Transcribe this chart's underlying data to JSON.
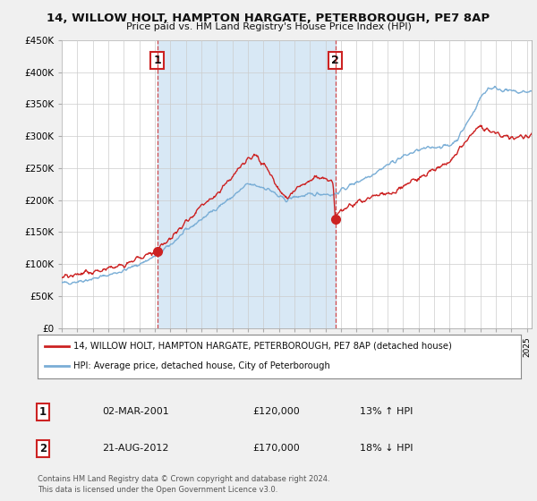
{
  "title": "14, WILLOW HOLT, HAMPTON HARGATE, PETERBOROUGH, PE7 8AP",
  "subtitle": "Price paid vs. HM Land Registry's House Price Index (HPI)",
  "legend_line1": "14, WILLOW HOLT, HAMPTON HARGATE, PETERBOROUGH, PE7 8AP (detached house)",
  "legend_line2": "HPI: Average price, detached house, City of Peterborough",
  "sale1_date": "02-MAR-2001",
  "sale1_price": "£120,000",
  "sale1_hpi": "13% ↑ HPI",
  "sale2_date": "21-AUG-2012",
  "sale2_price": "£170,000",
  "sale2_hpi": "18% ↓ HPI",
  "footer1": "Contains HM Land Registry data © Crown copyright and database right 2024.",
  "footer2": "This data is licensed under the Open Government Licence v3.0.",
  "ylim": [
    0,
    450000
  ],
  "yticks": [
    0,
    50000,
    100000,
    150000,
    200000,
    250000,
    300000,
    350000,
    400000,
    450000
  ],
  "xlim_start": 1995.0,
  "xlim_end": 2025.3,
  "red_color": "#cc2222",
  "blue_color": "#7aaed6",
  "shade_color": "#d8e8f5",
  "bg_color": "#f0f0f0",
  "plot_bg": "#ffffff",
  "vline_color": "#cc2222",
  "sale1_x": 2001.17,
  "sale1_y": 120000,
  "sale2_x": 2012.64,
  "sale2_y": 170000,
  "hpi_pts_x": [
    1995,
    1996,
    1997,
    1998,
    1999,
    2000,
    2001,
    2002,
    2003,
    2004,
    2005,
    2006,
    2007,
    2008,
    2008.5,
    2009,
    2009.5,
    2010,
    2011,
    2011.5,
    2012,
    2012.5,
    2013,
    2014,
    2015,
    2016,
    2017,
    2018,
    2019,
    2020,
    2020.5,
    2021,
    2021.5,
    2022,
    2022.5,
    2023,
    2023.5,
    2024,
    2024.5,
    2025.3
  ],
  "hpi_pts_y": [
    70000,
    73000,
    77000,
    83000,
    90000,
    100000,
    112000,
    130000,
    152000,
    170000,
    188000,
    205000,
    225000,
    220000,
    215000,
    205000,
    200000,
    205000,
    208000,
    210000,
    210000,
    208000,
    215000,
    228000,
    240000,
    255000,
    268000,
    278000,
    283000,
    285000,
    295000,
    315000,
    335000,
    360000,
    375000,
    375000,
    372000,
    370000,
    368000,
    370000
  ],
  "red_pts_x": [
    1995,
    1996,
    1997,
    1998,
    1999,
    2000,
    2001,
    2001.17,
    2002,
    2003,
    2004,
    2005,
    2006,
    2007,
    2007.5,
    2008,
    2008.5,
    2009,
    2009.5,
    2010,
    2010.5,
    2011,
    2011.5,
    2012,
    2012.5,
    2012.64,
    2013,
    2014,
    2015,
    2016,
    2017,
    2018,
    2019,
    2020,
    2020.5,
    2021,
    2021.5,
    2022,
    2022.5,
    2023,
    2023.5,
    2024,
    2024.5,
    2025.3
  ],
  "red_pts_y": [
    80000,
    83000,
    88000,
    93000,
    100000,
    110000,
    118000,
    120000,
    140000,
    165000,
    190000,
    210000,
    238000,
    265000,
    270000,
    255000,
    240000,
    215000,
    205000,
    215000,
    225000,
    230000,
    235000,
    232000,
    225000,
    170000,
    185000,
    195000,
    205000,
    210000,
    220000,
    235000,
    248000,
    260000,
    275000,
    290000,
    305000,
    315000,
    310000,
    305000,
    300000,
    300000,
    298000,
    300000
  ]
}
